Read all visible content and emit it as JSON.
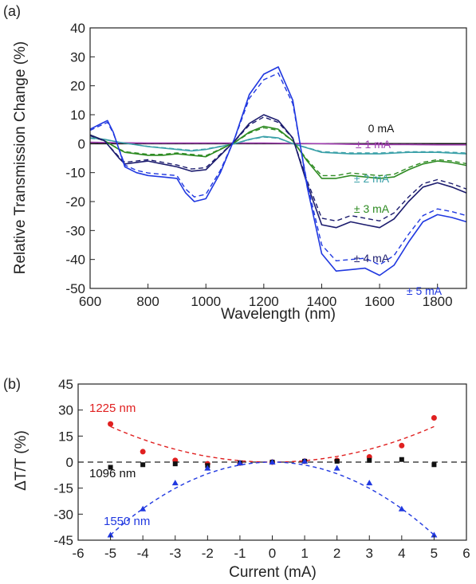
{
  "chart_data": [
    {
      "panel": "(a)",
      "type": "line",
      "xlabel": "Wavelength (nm)",
      "ylabel": "Relative Transmission Change (%)",
      "xlim": [
        600,
        1900
      ],
      "ylim": [
        -50,
        40
      ],
      "xticks": [
        600,
        800,
        1000,
        1200,
        1400,
        1600,
        1800
      ],
      "yticks": [
        -50,
        -40,
        -30,
        -20,
        -10,
        0,
        10,
        20,
        30,
        40
      ],
      "annotations": [
        {
          "text": "0 mA",
          "color": "#111111"
        },
        {
          "text": "± 1 mA",
          "color": "#a040b0"
        },
        {
          "text": "± 2 mA",
          "color": "#3aa0a8"
        },
        {
          "text": "± 3 mA",
          "color": "#2e8b22"
        },
        {
          "text": "± 4 mA",
          "color": "#1c1c6e"
        },
        {
          "text": "± 5 mA",
          "color": "#2038e0"
        }
      ],
      "series": [
        {
          "color": "#111111",
          "x": [
            600,
            700,
            800,
            900,
            1000,
            1100,
            1200,
            1300,
            1400,
            1500,
            1600,
            1700,
            1800,
            1900
          ],
          "y": [
            0,
            0,
            0,
            0,
            0,
            0,
            0,
            0,
            0,
            0,
            0,
            0,
            0,
            0
          ]
        },
        {
          "color": "#a040b0",
          "x": [
            600,
            700,
            800,
            900,
            1000,
            1100,
            1200,
            1300,
            1400,
            1500,
            1600,
            1700,
            1800,
            1900
          ],
          "y": [
            0.5,
            0.3,
            0.2,
            0.2,
            0.2,
            0.2,
            0.2,
            0.1,
            0,
            -0.2,
            -0.3,
            -0.3,
            -0.4,
            -0.4
          ]
        },
        {
          "color": "#3aa0a8",
          "x": [
            600,
            650,
            700,
            800,
            900,
            950,
            1000,
            1100,
            1150,
            1200,
            1250,
            1300,
            1400,
            1500,
            1600,
            1700,
            1800,
            1900
          ],
          "y": [
            2,
            1.5,
            0.5,
            -1,
            -2,
            -2.5,
            -2,
            0,
            1.5,
            2.5,
            2,
            0,
            -3,
            -3.5,
            -3.5,
            -3,
            -3,
            -3.5
          ]
        },
        {
          "color": "#2e8b22",
          "x": [
            600,
            650,
            700,
            720,
            800,
            850,
            900,
            950,
            1000,
            1100,
            1150,
            1200,
            1250,
            1300,
            1350,
            1400,
            1450,
            1500,
            1550,
            1600,
            1650,
            1700,
            1750,
            1800,
            1850,
            1900
          ],
          "y": [
            3,
            1,
            -2,
            -3,
            -4,
            -4,
            -3.5,
            -4,
            -4.5,
            0.5,
            4,
            6,
            5,
            1,
            -6,
            -12,
            -12,
            -11,
            -11.5,
            -12,
            -11.5,
            -9,
            -7,
            -6,
            -6.5,
            -7.5
          ]
        },
        {
          "color": "#1c1c6e",
          "x": [
            600,
            650,
            700,
            720,
            800,
            850,
            900,
            950,
            1000,
            1050,
            1100,
            1150,
            1200,
            1250,
            1300,
            1350,
            1400,
            1450,
            1500,
            1550,
            1600,
            1650,
            1700,
            1750,
            1800,
            1850,
            1900
          ],
          "y": [
            3,
            1,
            -5,
            -7,
            -6,
            -7,
            -8,
            -9.5,
            -9,
            -4,
            1,
            7,
            10,
            8,
            2,
            -14,
            -28,
            -29,
            -27,
            -28,
            -29,
            -26,
            -20,
            -15,
            -13.5,
            -15,
            -17
          ]
        },
        {
          "color": "#2038e0",
          "x": [
            600,
            640,
            660,
            680,
            700,
            720,
            760,
            800,
            850,
            900,
            930,
            960,
            1000,
            1050,
            1100,
            1150,
            1200,
            1250,
            1300,
            1350,
            1400,
            1450,
            1500,
            1550,
            1600,
            1650,
            1700,
            1750,
            1800,
            1850,
            1900
          ],
          "y": [
            5,
            7,
            8,
            4,
            -2,
            -8,
            -10,
            -11,
            -11.5,
            -12,
            -17,
            -20,
            -19,
            -10,
            2,
            17,
            24,
            26.5,
            15,
            -15,
            -38,
            -44,
            -43.5,
            -43,
            -45.5,
            -42,
            -34,
            -27,
            -24.5,
            -25.5,
            -27
          ]
        }
      ]
    },
    {
      "panel": "(b)",
      "type": "scatter",
      "xlabel": "Current (mA)",
      "ylabel": "ΔT/T  (%)",
      "xlim": [
        -6,
        6
      ],
      "ylim": [
        -45,
        45
      ],
      "xticks": [
        -6,
        -5,
        -4,
        -3,
        -2,
        -1,
        0,
        1,
        2,
        3,
        4,
        5,
        6
      ],
      "yticks": [
        -45,
        -30,
        -15,
        0,
        15,
        30,
        45
      ],
      "series_labels": [
        "1225 nm",
        "1096 nm",
        "1550 nm"
      ],
      "series": [
        {
          "label": "1225 nm",
          "color": "#e02020",
          "marker": "circle",
          "x": [
            -5,
            -4,
            -3,
            -2,
            -1,
            0,
            1,
            2,
            3,
            4,
            5
          ],
          "y": [
            22,
            6,
            1,
            -1,
            -0.5,
            0,
            0.5,
            1,
            3,
            9.5,
            25.5
          ]
        },
        {
          "label": "1096 nm",
          "color": "#111111",
          "marker": "square",
          "x": [
            -5,
            -4,
            -3,
            -2,
            -1,
            0,
            1,
            2,
            3,
            4,
            5
          ],
          "y": [
            -3,
            -1.5,
            -1,
            -2,
            -0.5,
            0,
            0.5,
            0.5,
            1,
            1.5,
            -1.5
          ]
        },
        {
          "label": "1550 nm",
          "color": "#2038e0",
          "marker": "triangle",
          "x": [
            -5,
            -4,
            -3,
            -2,
            -1,
            0,
            1,
            2,
            3,
            4,
            5
          ],
          "y": [
            -42,
            -27,
            -12,
            -3.5,
            -0.5,
            0,
            0.5,
            -3.5,
            -12,
            -27,
            -42
          ]
        }
      ],
      "fits": [
        {
          "color": "#e02020",
          "coef": 0.82
        },
        {
          "color": "#2038e0",
          "coef": -1.68
        }
      ]
    }
  ]
}
